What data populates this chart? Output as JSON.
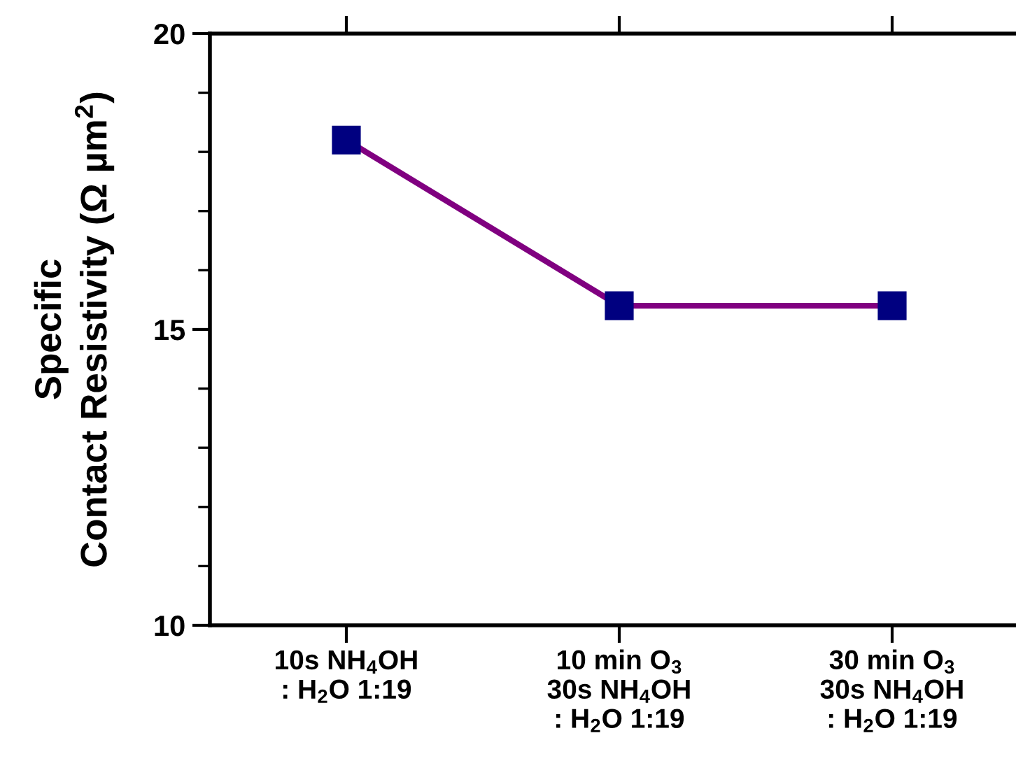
{
  "chart_data": {
    "type": "line",
    "ylabel": "Specific\nContact Resistivity (Ω µm$^{2}$)",
    "categories": [
      "10s NH$_{4}$OH\n: H$_{2}$O 1:19",
      "10 min O$_{3}$\n30s NH$_{4}$OH\n: H$_{2}$O 1:19",
      "30 min O$_{3}$\n30s NH$_{4}$OH\n: H$_{2}$O 1:19"
    ],
    "series": [
      {
        "color": "#800080",
        "colors": [
          "#000080",
          "#000080",
          "#000080"
        ],
        "values": [
          18.2,
          15.4,
          15.4
        ]
      }
    ],
    "ylim": [
      10,
      20
    ],
    "yticks": [
      10,
      15,
      20
    ],
    "marker": "square",
    "line_style": "solid",
    "grid": false,
    "legend": false
  }
}
